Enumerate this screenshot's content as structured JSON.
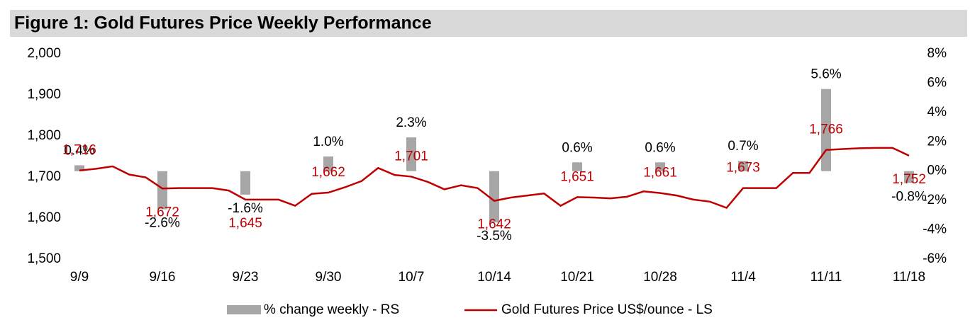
{
  "chart_data": {
    "type": "bar+line",
    "title": "Figure 1: Gold Futures Price Weekly Performance",
    "categories": [
      "9/9",
      null,
      null,
      null,
      null,
      "9/16",
      null,
      null,
      null,
      null,
      "9/23",
      null,
      null,
      null,
      null,
      "9/30",
      null,
      null,
      null,
      null,
      "10/7",
      null,
      null,
      null,
      null,
      "10/14",
      null,
      null,
      null,
      null,
      "10/21",
      null,
      null,
      null,
      null,
      "10/28",
      null,
      null,
      null,
      null,
      "11/4",
      null,
      null,
      null,
      null,
      "11/11",
      null,
      null,
      null,
      null,
      "11/18"
    ],
    "series": [
      {
        "name": "% change weekly - RS",
        "type": "bar",
        "axis": "y2",
        "color": "#a6a6a6",
        "values": [
          0.4,
          null,
          null,
          null,
          null,
          -2.6,
          null,
          null,
          null,
          null,
          -1.6,
          null,
          null,
          null,
          null,
          1.0,
          null,
          null,
          null,
          null,
          2.3,
          null,
          null,
          null,
          null,
          -3.5,
          null,
          null,
          null,
          null,
          0.6,
          null,
          null,
          null,
          null,
          0.6,
          null,
          null,
          null,
          null,
          0.7,
          null,
          null,
          null,
          null,
          5.6,
          null,
          null,
          null,
          null,
          -0.8
        ],
        "value_labels": [
          "0.4%",
          null,
          null,
          null,
          null,
          "-2.6%",
          null,
          null,
          null,
          null,
          "-1.6%",
          null,
          null,
          null,
          null,
          "1.0%",
          null,
          null,
          null,
          null,
          "2.3%",
          null,
          null,
          null,
          null,
          "-3.5%",
          null,
          null,
          null,
          null,
          "0.6%",
          null,
          null,
          null,
          null,
          "0.6%",
          null,
          null,
          null,
          null,
          "0.7%",
          null,
          null,
          null,
          null,
          "5.6%",
          null,
          null,
          null,
          null,
          "-0.8%"
        ]
      },
      {
        "name": "Gold Futures Price US$/ounce - LS",
        "type": "line",
        "axis": "y",
        "color": "#c00000",
        "values": [
          1716,
          1720,
          1726,
          1706,
          1699,
          1672,
          1673,
          1673,
          1673,
          1667,
          1645,
          1645,
          1645,
          1630,
          1659,
          1662,
          1675,
          1690,
          1722,
          1705,
          1701,
          1688,
          1670,
          1680,
          1673,
          1642,
          1650,
          1655,
          1660,
          1630,
          1651,
          1650,
          1648,
          1652,
          1665,
          1661,
          1655,
          1645,
          1640,
          1625,
          1673,
          1673,
          1673,
          1710,
          1710,
          1766,
          1768,
          1770,
          1771,
          1771,
          1752
        ],
        "value_labels": [
          "1,716",
          null,
          null,
          null,
          null,
          "1,672",
          null,
          null,
          null,
          null,
          "1,645",
          null,
          null,
          null,
          null,
          "1,662",
          null,
          null,
          null,
          null,
          "1,701",
          null,
          null,
          null,
          null,
          "1,642",
          null,
          null,
          null,
          null,
          "1,651",
          null,
          null,
          null,
          null,
          "1,661",
          null,
          null,
          null,
          null,
          "1,673",
          null,
          null,
          null,
          null,
          "1,766",
          null,
          null,
          null,
          null,
          "1,752"
        ]
      }
    ],
    "ylim": [
      1500,
      2000
    ],
    "yticks": [
      {
        "value": 1500,
        "label": "1,500"
      },
      {
        "value": 1600,
        "label": "1,600"
      },
      {
        "value": 1700,
        "label": "1,700"
      },
      {
        "value": 1800,
        "label": "1,800"
      },
      {
        "value": 1900,
        "label": "1,900"
      },
      {
        "value": 2000,
        "label": "2,000"
      }
    ],
    "y2lim": [
      -6,
      8
    ],
    "y2ticks": [
      {
        "value": -6,
        "label": "-6%"
      },
      {
        "value": -4,
        "label": "-4%"
      },
      {
        "value": -2,
        "label": "-2%"
      },
      {
        "value": 0,
        "label": "0%"
      },
      {
        "value": 2,
        "label": "2%"
      },
      {
        "value": 4,
        "label": "4%"
      },
      {
        "value": 6,
        "label": "6%"
      },
      {
        "value": 8,
        "label": "8%"
      }
    ],
    "legend": "bottom",
    "grid": false
  }
}
